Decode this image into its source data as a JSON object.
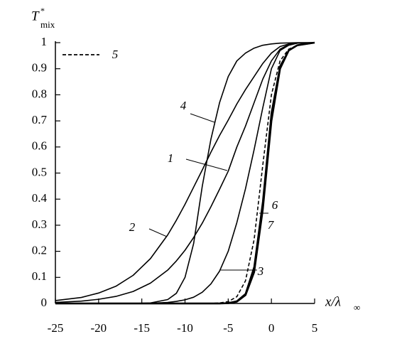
{
  "chart_data": {
    "type": "line",
    "y_label": "T",
    "y_label_sup": "*",
    "y_label_sub": "mix",
    "x_label": "x/λ",
    "x_label_sub": "∞",
    "x": [
      -25,
      -22,
      -20,
      -18,
      -16,
      -14,
      -12,
      -11,
      -10,
      -9,
      -8,
      -7,
      -6,
      -5,
      -4,
      -3,
      -2,
      -1,
      0,
      1,
      2,
      3,
      5
    ],
    "xlim": [
      -25,
      5
    ],
    "xticks": [
      -25,
      -20,
      -15,
      -10,
      -5,
      0,
      5
    ],
    "ylim": [
      0,
      1
    ],
    "yticks": [
      0,
      0.1,
      0.2,
      0.3,
      0.4,
      0.5,
      0.6,
      0.7,
      0.8,
      0.9,
      1
    ],
    "series": [
      {
        "name": "1",
        "color": "#000000",
        "style": "solid",
        "values": [
          0.004,
          0.009,
          0.016,
          0.027,
          0.046,
          0.078,
          0.128,
          0.163,
          0.204,
          0.253,
          0.308,
          0.371,
          0.438,
          0.507,
          0.6,
          0.68,
          0.77,
          0.86,
          0.93,
          0.975,
          0.993,
          0.998,
          1.0
        ]
      },
      {
        "name": "2",
        "color": "#000000",
        "style": "solid",
        "values": [
          0.011,
          0.023,
          0.04,
          0.066,
          0.108,
          0.172,
          0.263,
          0.319,
          0.38,
          0.446,
          0.512,
          0.58,
          0.644,
          0.703,
          0.765,
          0.82,
          0.87,
          0.92,
          0.96,
          0.985,
          0.995,
          0.999,
          1.0
        ]
      },
      {
        "name": "3",
        "color": "#000000",
        "style": "solid",
        "values": [
          0,
          0,
          0,
          0.0001,
          0.0004,
          0.001,
          0.004,
          0.008,
          0.014,
          0.024,
          0.043,
          0.075,
          0.124,
          0.2,
          0.31,
          0.44,
          0.59,
          0.75,
          0.9,
          0.97,
          0.99,
          0.998,
          1.0
        ]
      },
      {
        "name": "4",
        "color": "#000000",
        "style": "solid",
        "values": [
          0,
          0,
          0,
          0,
          0,
          0.002,
          0.015,
          0.039,
          0.1,
          0.23,
          0.45,
          0.63,
          0.77,
          0.87,
          0.93,
          0.96,
          0.979,
          0.99,
          0.995,
          0.998,
          0.999,
          1.0,
          1.0
        ]
      },
      {
        "name": "5",
        "color": "#000000",
        "style": "dashed",
        "values": [
          0,
          0,
          0,
          0,
          0,
          0,
          0,
          0,
          0,
          0,
          0,
          0,
          0.002,
          0.007,
          0.026,
          0.087,
          0.245,
          0.53,
          0.8,
          0.93,
          0.975,
          0.99,
          1.0
        ]
      },
      {
        "name": "6",
        "color": "#000000",
        "style": "solid",
        "values": [
          0,
          0,
          0,
          0,
          0,
          0,
          0,
          0,
          0,
          0,
          0,
          0,
          0,
          0.002,
          0.009,
          0.037,
          0.14,
          0.39,
          0.73,
          0.91,
          0.97,
          0.99,
          1.0
        ]
      },
      {
        "name": "7",
        "color": "#000000",
        "style": "solid",
        "values": [
          0,
          0,
          0,
          0,
          0,
          0,
          0,
          0,
          0,
          0,
          0,
          0,
          0,
          0.001,
          0.007,
          0.032,
          0.12,
          0.36,
          0.7,
          0.9,
          0.97,
          0.99,
          1.0
        ]
      }
    ]
  }
}
